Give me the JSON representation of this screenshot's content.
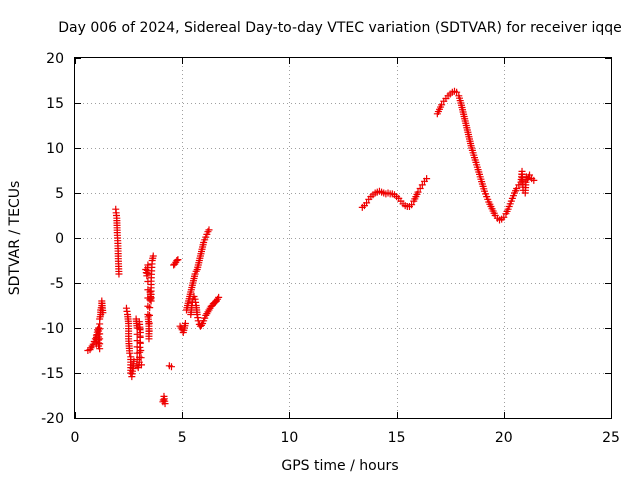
{
  "chart_data": {
    "type": "scatter",
    "title": "Day 006 of 2024, Sidereal Day-to-day VTEC variation (SDTVAR) for receiver iqqe",
    "xlabel": "GPS time / hours",
    "ylabel": "SDTVAR / TECUs",
    "xlim": [
      0,
      25
    ],
    "ylim": [
      -20,
      20
    ],
    "xticks": [
      0,
      5,
      10,
      15,
      20,
      25
    ],
    "yticks": [
      -20,
      -15,
      -10,
      -5,
      0,
      5,
      10,
      15,
      20
    ],
    "grid": true,
    "marker": "+",
    "color": "#ee0000",
    "series": [
      {
        "name": "iqqe",
        "segments": [
          [
            [
              0.6,
              -12.5
            ],
            [
              0.7,
              -12.4
            ],
            [
              0.75,
              -12.2
            ],
            [
              0.8,
              -12.0
            ],
            [
              0.85,
              -11.8
            ],
            [
              0.9,
              -11.5
            ],
            [
              0.95,
              -11.2
            ],
            [
              1.0,
              -10.8
            ],
            [
              1.0,
              -11.8
            ],
            [
              1.05,
              -10.2
            ],
            [
              1.1,
              -10.0
            ],
            [
              1.1,
              -12.0
            ],
            [
              1.15,
              -12.3
            ],
            [
              1.15,
              -9.0
            ],
            [
              1.2,
              -8.5
            ],
            [
              1.2,
              -8.0
            ],
            [
              1.25,
              -7.5
            ],
            [
              1.25,
              -7.0
            ],
            [
              1.3,
              -8.3
            ]
          ],
          [
            [
              1.9,
              3.2
            ],
            [
              1.92,
              2.8
            ],
            [
              1.95,
              2.2
            ],
            [
              1.97,
              0.6
            ],
            [
              2.0,
              -0.6
            ],
            [
              2.02,
              -2.3
            ],
            [
              2.05,
              -4.0
            ]
          ],
          [
            [
              2.4,
              -7.8
            ],
            [
              2.45,
              -8.5
            ],
            [
              2.5,
              -9.5
            ],
            [
              2.5,
              -11.2
            ],
            [
              2.55,
              -12.8
            ],
            [
              2.6,
              -13.2
            ],
            [
              2.6,
              -15.0
            ],
            [
              2.65,
              -15.4
            ],
            [
              2.7,
              -14.5
            ],
            [
              2.75,
              -13.7
            ]
          ],
          [
            [
              2.85,
              -9.0
            ],
            [
              2.9,
              -10.0
            ],
            [
              2.9,
              -14.2
            ],
            [
              2.95,
              -14.4
            ],
            [
              3.0,
              -13.8
            ],
            [
              3.05,
              -10.5
            ],
            [
              3.0,
              -9.3
            ],
            [
              3.1,
              -14.1
            ]
          ],
          [
            [
              3.3,
              -3.5
            ],
            [
              3.35,
              -4.2
            ],
            [
              3.4,
              -3.0
            ],
            [
              3.4,
              -8.5
            ],
            [
              3.45,
              -9.8
            ],
            [
              3.45,
              -11.2
            ],
            [
              3.5,
              -6.0
            ],
            [
              3.55,
              -7.0
            ],
            [
              3.55,
              -4.8
            ],
            [
              3.6,
              -2.5
            ],
            [
              3.65,
              -2.0
            ]
          ],
          [
            [
              4.1,
              -18.2
            ],
            [
              4.12,
              -18.0
            ],
            [
              4.15,
              -17.6
            ],
            [
              4.2,
              -18.4
            ]
          ],
          [
            [
              4.4,
              -14.2
            ],
            [
              4.5,
              -14.3
            ]
          ],
          [
            [
              4.6,
              -3.0
            ],
            [
              4.65,
              -2.9
            ],
            [
              4.7,
              -2.7
            ],
            [
              4.75,
              -2.5
            ],
            [
              4.8,
              -2.4
            ]
          ],
          [
            [
              4.9,
              -9.8
            ],
            [
              4.95,
              -10.0
            ],
            [
              5.0,
              -10.2
            ],
            [
              5.05,
              -10.5
            ],
            [
              5.1,
              -10.0
            ],
            [
              5.15,
              -9.5
            ]
          ],
          [
            [
              5.2,
              -8.0
            ],
            [
              5.25,
              -7.5
            ],
            [
              5.3,
              -7.0
            ],
            [
              5.35,
              -6.5
            ],
            [
              5.4,
              -6.0
            ],
            [
              5.45,
              -5.5
            ],
            [
              5.5,
              -5.0
            ],
            [
              5.55,
              -4.5
            ],
            [
              5.6,
              -4.0
            ],
            [
              5.65,
              -3.7
            ],
            [
              5.7,
              -3.5
            ],
            [
              5.75,
              -3.0
            ],
            [
              5.8,
              -2.5
            ],
            [
              5.85,
              -2.0
            ],
            [
              5.9,
              -1.5
            ],
            [
              5.95,
              -1.0
            ],
            [
              6.0,
              -0.5
            ],
            [
              6.05,
              -0.2
            ],
            [
              6.1,
              0.1
            ],
            [
              6.15,
              0.4
            ],
            [
              6.2,
              0.7
            ],
            [
              6.25,
              0.9
            ]
          ],
          [
            [
              5.4,
              -8.5
            ],
            [
              5.45,
              -7.5
            ],
            [
              5.5,
              -6.8
            ],
            [
              5.55,
              -6.5
            ],
            [
              5.6,
              -6.8
            ],
            [
              5.65,
              -7.5
            ],
            [
              5.7,
              -8.5
            ],
            [
              5.75,
              -9.2
            ],
            [
              5.8,
              -9.6
            ],
            [
              5.85,
              -9.8
            ],
            [
              5.9,
              -9.7
            ],
            [
              5.95,
              -9.5
            ],
            [
              6.0,
              -9.2
            ],
            [
              6.05,
              -8.9
            ],
            [
              6.1,
              -8.6
            ],
            [
              6.15,
              -8.4
            ],
            [
              6.2,
              -8.2
            ],
            [
              6.25,
              -8.0
            ],
            [
              6.3,
              -7.8
            ],
            [
              6.35,
              -7.6
            ],
            [
              6.4,
              -7.5
            ],
            [
              6.45,
              -7.3
            ],
            [
              6.5,
              -7.2
            ],
            [
              6.55,
              -7.1
            ],
            [
              6.6,
              -7.0
            ],
            [
              6.65,
              -6.8
            ],
            [
              6.7,
              -6.6
            ]
          ],
          [
            [
              13.4,
              3.4
            ],
            [
              13.5,
              3.6
            ],
            [
              13.6,
              3.9
            ],
            [
              13.7,
              4.3
            ],
            [
              13.8,
              4.6
            ],
            [
              13.9,
              4.8
            ],
            [
              14.0,
              5.0
            ],
            [
              14.1,
              5.1
            ],
            [
              14.2,
              5.2
            ],
            [
              14.3,
              5.1
            ],
            [
              14.4,
              5.0
            ],
            [
              14.5,
              4.9
            ],
            [
              14.6,
              5.0
            ],
            [
              14.7,
              4.9
            ],
            [
              14.8,
              4.9
            ],
            [
              14.9,
              4.8
            ],
            [
              15.0,
              4.6
            ],
            [
              15.1,
              4.4
            ],
            [
              15.2,
              4.1
            ],
            [
              15.3,
              3.8
            ],
            [
              15.4,
              3.6
            ],
            [
              15.5,
              3.5
            ],
            [
              15.6,
              3.5
            ],
            [
              15.7,
              3.7
            ],
            [
              15.8,
              4.1
            ],
            [
              15.9,
              4.6
            ],
            [
              16.0,
              5.1
            ],
            [
              16.1,
              5.5
            ],
            [
              16.2,
              5.9
            ],
            [
              16.3,
              6.3
            ],
            [
              16.4,
              6.6
            ]
          ],
          [
            [
              16.9,
              13.8
            ],
            [
              17.0,
              14.3
            ],
            [
              17.1,
              14.8
            ],
            [
              17.2,
              15.2
            ],
            [
              17.3,
              15.5
            ],
            [
              17.4,
              15.8
            ],
            [
              17.5,
              16.0
            ],
            [
              17.6,
              16.2
            ],
            [
              17.7,
              16.3
            ],
            [
              17.8,
              16.2
            ],
            [
              17.9,
              15.8
            ],
            [
              18.0,
              15.0
            ],
            [
              18.1,
              14.0
            ],
            [
              18.2,
              13.0
            ],
            [
              18.3,
              12.0
            ],
            [
              18.4,
              11.0
            ],
            [
              18.5,
              10.0
            ],
            [
              18.6,
              9.2
            ],
            [
              18.7,
              8.4
            ],
            [
              18.8,
              7.6
            ],
            [
              18.9,
              6.8
            ],
            [
              19.0,
              6.0
            ],
            [
              19.1,
              5.2
            ],
            [
              19.2,
              4.6
            ],
            [
              19.3,
              4.0
            ],
            [
              19.4,
              3.5
            ],
            [
              19.5,
              3.0
            ],
            [
              19.6,
              2.5
            ],
            [
              19.7,
              2.2
            ],
            [
              19.8,
              2.0
            ],
            [
              19.9,
              2.1
            ],
            [
              20.0,
              2.3
            ],
            [
              20.1,
              2.7
            ],
            [
              20.2,
              3.2
            ],
            [
              20.3,
              3.8
            ],
            [
              20.4,
              4.4
            ],
            [
              20.5,
              5.0
            ],
            [
              20.6,
              5.5
            ],
            [
              20.7,
              5.9
            ],
            [
              20.8,
              6.2
            ],
            [
              20.85,
              7.4
            ],
            [
              20.9,
              5.3
            ],
            [
              21.0,
              5.0
            ],
            [
              21.05,
              6.8
            ],
            [
              21.1,
              6.5
            ],
            [
              21.2,
              7.0
            ],
            [
              21.3,
              6.6
            ],
            [
              21.4,
              6.4
            ]
          ]
        ]
      }
    ]
  }
}
